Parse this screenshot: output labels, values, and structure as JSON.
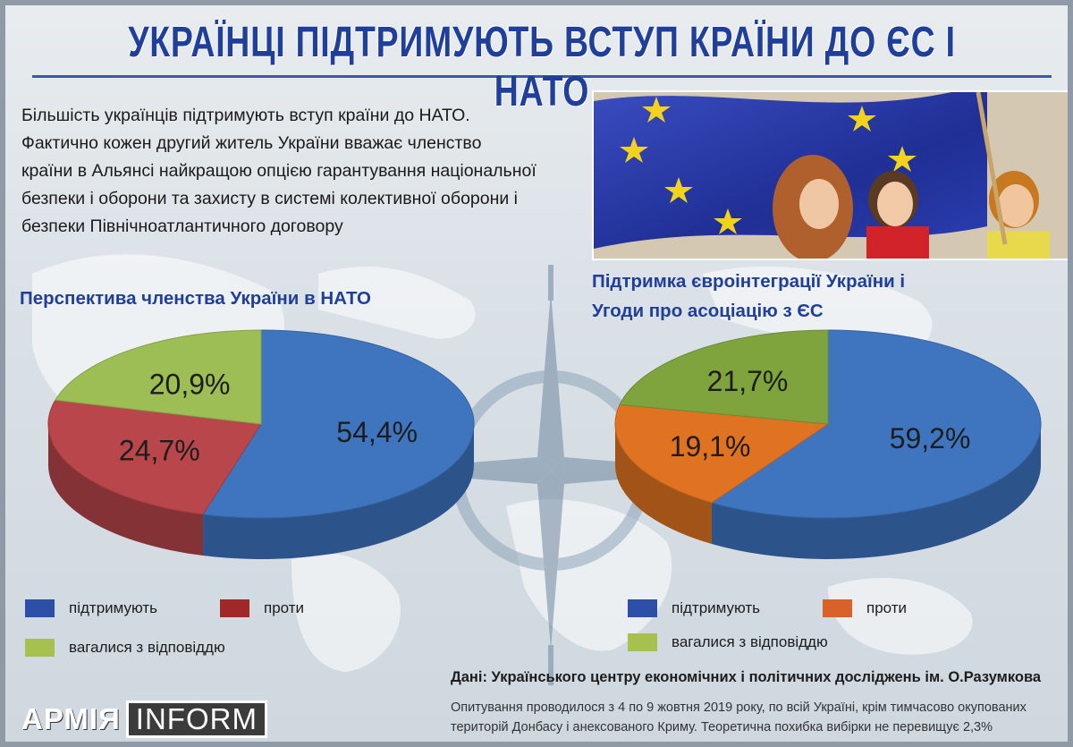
{
  "title": "УКРАЇНЦІ ПІДТРИМУЮТЬ ВСТУП КРАЇНИ ДО ЄС І НАТО",
  "intro": {
    "lines": [
      "Більшість українців підтримують вступ країни до НАТО.",
      "Фактично кожен другий житель України вважає членство",
      "країни в Альянсі найкращою опцією гарантування національної",
      "безпеки і оборони та захисту в системі колективної оборони і",
      "безпеки Північноатлантичного договору"
    ]
  },
  "photo": {
    "icon": "eu-flag-photo"
  },
  "chart_data": [
    {
      "type": "pie",
      "title": "Перспектива членства України в НАТО",
      "categories": [
        "підтримують",
        "проти",
        "вагалися з відповіддю"
      ],
      "values": [
        54.4,
        24.7,
        20.9
      ],
      "value_labels": [
        "54,4%",
        "24,7%",
        "20,9%"
      ],
      "colors": [
        "#3f74bf",
        "#b8464a",
        "#9dbd55"
      ],
      "legend_colors": [
        "#2e4fa8",
        "#a02828",
        "#a6c14e"
      ],
      "legend_placement": "bottom"
    },
    {
      "type": "pie",
      "title": "Підтримка євроінтеграції України і Угоди про асоціацію з ЄС",
      "title_lines": [
        "Підтримка євроінтеграції України і",
        "Угоди про асоціацію з ЄС"
      ],
      "categories": [
        "підтримують",
        "проти",
        "вагалися з відповіддю"
      ],
      "values": [
        59.2,
        19.1,
        21.7
      ],
      "value_labels": [
        "59,2%",
        "19,1%",
        "21,7%"
      ],
      "colors": [
        "#3f74bf",
        "#e07321",
        "#7fa33d"
      ],
      "legend_colors": [
        "#2e4fa8",
        "#d9612a",
        "#a6c14e"
      ],
      "legend_placement": "bottom"
    }
  ],
  "source": "Дані: Українського центру економічних і політичних досліджень ім. О.Разумкова",
  "note": "Опитування проводилося з 4 по 9 жовтня 2019 року, по всій Україні, крім тимчасово окупованих територій Донбасу і анексованого Криму. Теоретична похибка вибірки не перевищує 2,3%",
  "logo": {
    "left": "АРМІЯ",
    "right": "INFORM"
  }
}
